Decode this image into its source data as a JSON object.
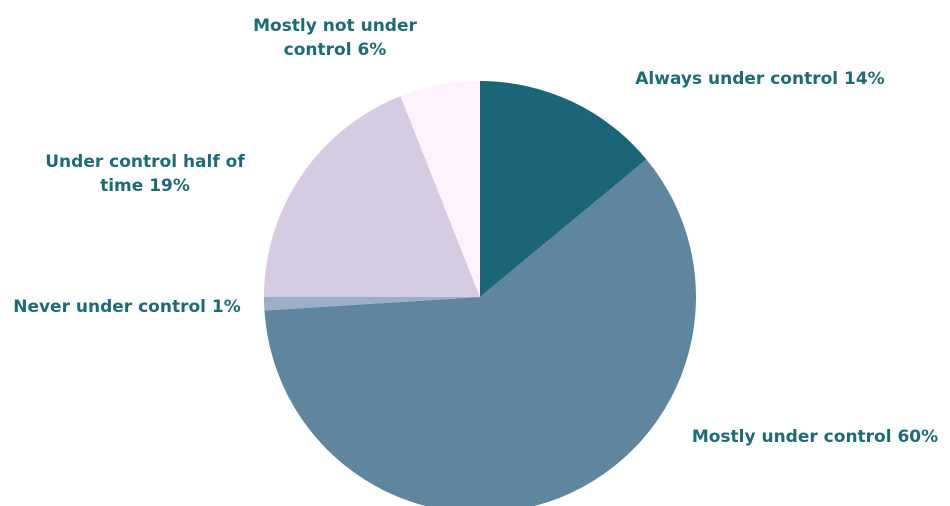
{
  "chart_data": {
    "type": "pie",
    "start_angle_deg": 0,
    "direction": "clockwise",
    "label_color": "#1F6B75",
    "slices": [
      {
        "label_lines": [
          "Always under control 14%"
        ],
        "value": 14,
        "color": "#1A6577"
      },
      {
        "label_lines": [
          "Mostly under control 60%"
        ],
        "value": 60,
        "color": "#60869F"
      },
      {
        "label_lines": [
          "Never under control 1%"
        ],
        "value": 1,
        "color": "#9CAFC9"
      },
      {
        "label_lines": [
          "Under control half of",
          "time 19%"
        ],
        "value": 19,
        "color": "#D5CCE3"
      },
      {
        "label_lines": [
          "Mostly not under",
          "control 6%"
        ],
        "value": 6,
        "color": "#FFF2FF"
      }
    ]
  }
}
